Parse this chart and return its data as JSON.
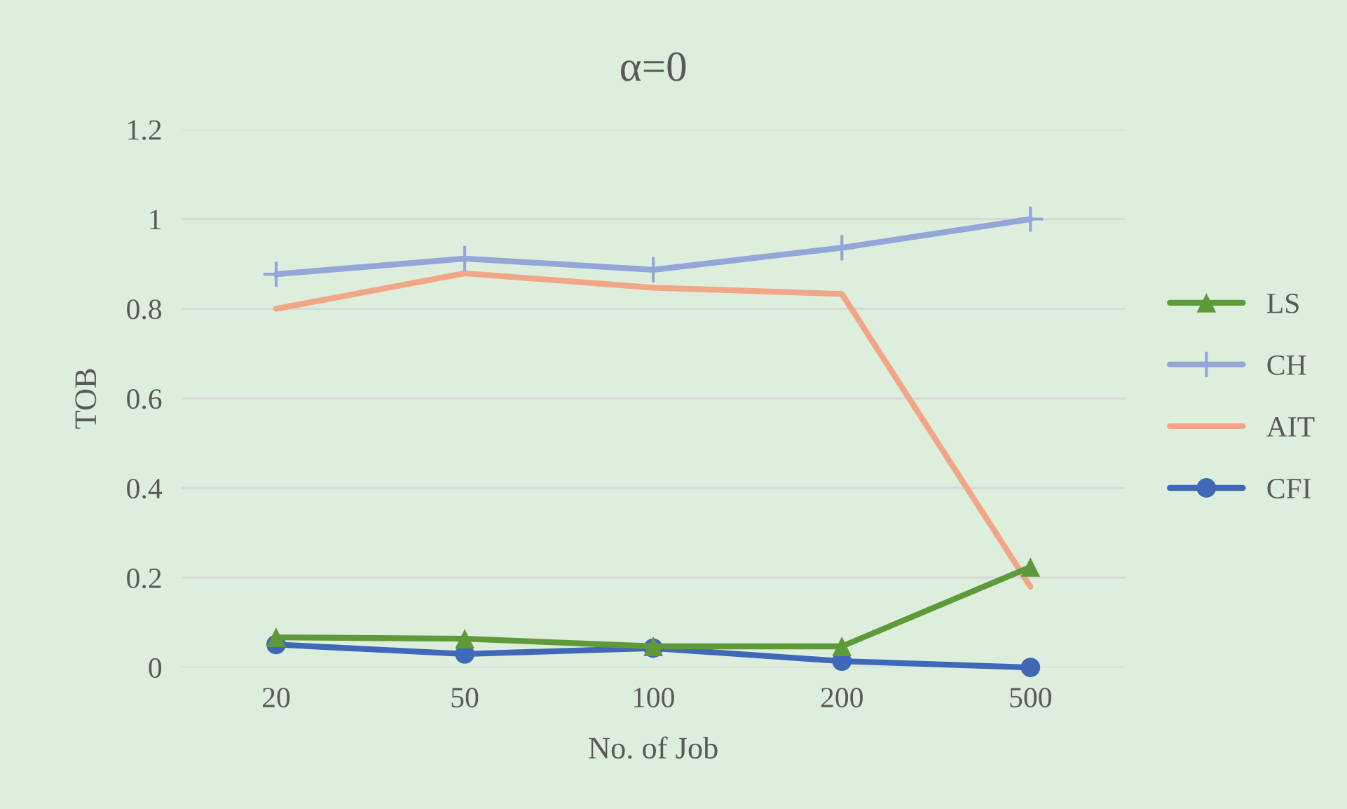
{
  "chart_data": {
    "type": "line",
    "title": "α=0",
    "xlabel": "No. of Job",
    "ylabel": "TOB",
    "categories": [
      "20",
      "50",
      "100",
      "200",
      "500"
    ],
    "series": [
      {
        "name": "LS",
        "color": "#5f9a3a",
        "marker": "triangle",
        "values": [
          0.067,
          0.064,
          0.047,
          0.047,
          0.224
        ]
      },
      {
        "name": "CH",
        "color": "#93a6d8",
        "marker": "cross",
        "values": [
          0.877,
          0.912,
          0.887,
          0.936,
          1.0
        ]
      },
      {
        "name": "AIT",
        "color": "#f2a688",
        "marker": "none",
        "values": [
          0.8,
          0.879,
          0.847,
          0.833,
          0.18
        ]
      },
      {
        "name": "CFI",
        "color": "#3f68b8",
        "marker": "circle",
        "values": [
          0.051,
          0.03,
          0.043,
          0.014,
          0.0
        ]
      }
    ],
    "ylim": [
      0,
      1.2
    ],
    "yticks": [
      0,
      0.2,
      0.4,
      0.6,
      0.8,
      1,
      1.2
    ],
    "grid": "y",
    "legend": "right"
  }
}
